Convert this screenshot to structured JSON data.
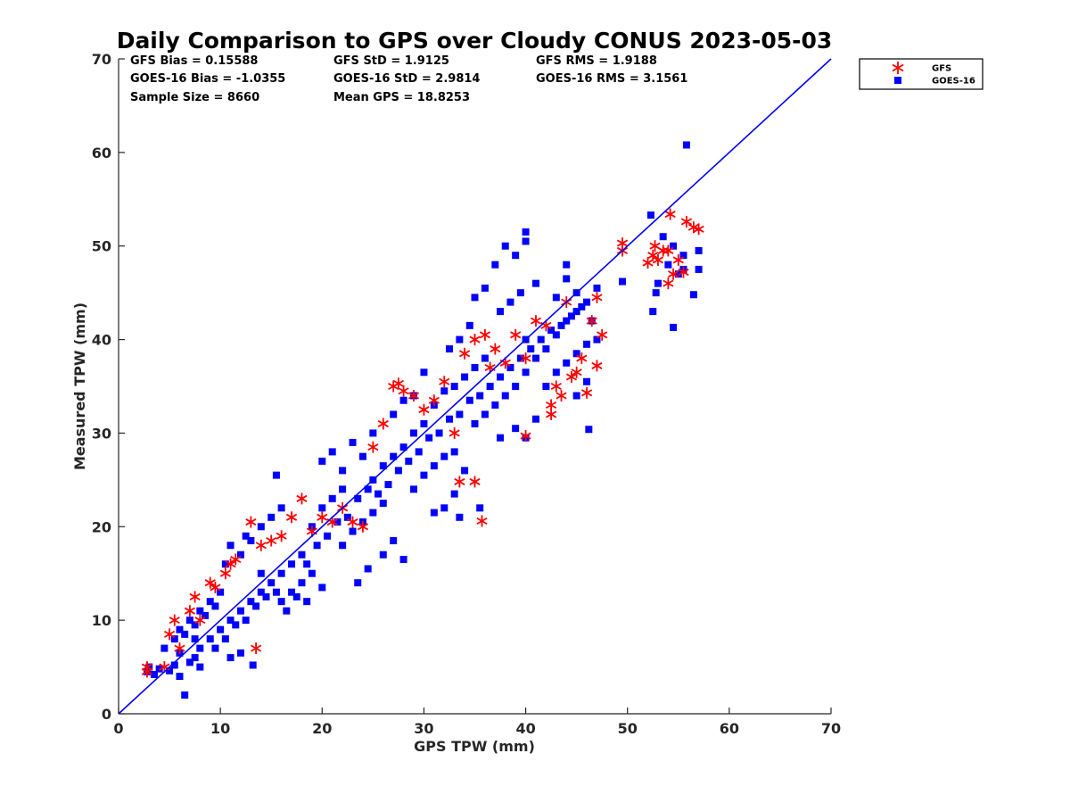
{
  "chart_data": {
    "type": "scatter",
    "title": "Daily Comparison to GPS over Cloudy CONUS 2023-05-03",
    "xlabel": "GPS TPW (mm)",
    "ylabel": "Measured TPW (mm)",
    "xlim": [
      0,
      70
    ],
    "ylim": [
      0,
      70
    ],
    "xticks": [
      "0",
      "10",
      "20",
      "30",
      "40",
      "50",
      "60",
      "70"
    ],
    "yticks": [
      "0",
      "10",
      "20",
      "30",
      "40",
      "50",
      "60",
      "70"
    ],
    "grid": false,
    "legend_position": "outside-top-right",
    "reference_line": {
      "x": [
        0,
        70
      ],
      "y": [
        0,
        70
      ],
      "color": "#0000ff"
    },
    "stats": [
      [
        "GFS Bias = 0.15588",
        "GFS StD = 1.9125",
        "GFS RMS = 1.9188"
      ],
      [
        "GOES-16 Bias = -1.0355",
        "GOES-16 StD = 2.9814",
        "GOES-16 RMS = 3.1561"
      ],
      [
        "Sample Size = 8660",
        "Mean GPS = 18.8253",
        ""
      ]
    ],
    "series": [
      {
        "name": "GOES-16",
        "marker": "square",
        "color": "#0000ff",
        "points": [
          [
            2.8,
            4.5
          ],
          [
            3.5,
            4.2
          ],
          [
            4.0,
            4.8
          ],
          [
            5.0,
            4.6
          ],
          [
            5.5,
            5.2
          ],
          [
            6.0,
            4.0
          ],
          [
            6.5,
            2.0
          ],
          [
            7.0,
            5.5
          ],
          [
            7.5,
            6.0
          ],
          [
            8.0,
            5.0
          ],
          [
            5.5,
            8.0
          ],
          [
            6.0,
            9.0
          ],
          [
            6.5,
            8.5
          ],
          [
            7.0,
            10.0
          ],
          [
            7.5,
            9.5
          ],
          [
            8.0,
            11.0
          ],
          [
            8.5,
            10.5
          ],
          [
            9.0,
            12.0
          ],
          [
            9.5,
            11.5
          ],
          [
            10.0,
            13.0
          ],
          [
            8.0,
            7.0
          ],
          [
            9.0,
            8.0
          ],
          [
            10.0,
            9.0
          ],
          [
            11.0,
            10.0
          ],
          [
            12.0,
            11.0
          ],
          [
            13.0,
            12.0
          ],
          [
            14.0,
            13.0
          ],
          [
            13.2,
            5.2
          ],
          [
            12.0,
            6.5
          ],
          [
            11.0,
            6.0
          ],
          [
            10.5,
            16.0
          ],
          [
            11.0,
            18.0
          ],
          [
            12.0,
            17.0
          ],
          [
            12.5,
            19.0
          ],
          [
            13.0,
            18.5
          ],
          [
            14.0,
            20.0
          ],
          [
            15.0,
            21.0
          ],
          [
            16.0,
            22.0
          ],
          [
            15.5,
            25.5
          ],
          [
            14.0,
            15.0
          ],
          [
            15.0,
            14.0
          ],
          [
            16.0,
            15.0
          ],
          [
            17.0,
            16.0
          ],
          [
            18.0,
            17.0
          ],
          [
            16.0,
            12.0
          ],
          [
            17.0,
            13.0
          ],
          [
            18.0,
            14.0
          ],
          [
            19.0,
            15.0
          ],
          [
            18.5,
            12.0
          ],
          [
            20.0,
            13.5
          ],
          [
            19.0,
            20.0
          ],
          [
            20.0,
            22.0
          ],
          [
            21.0,
            23.0
          ],
          [
            22.0,
            24.0
          ],
          [
            20.0,
            27.0
          ],
          [
            21.0,
            28.0
          ],
          [
            22.0,
            26.0
          ],
          [
            23.0,
            29.0
          ],
          [
            24.0,
            27.5
          ],
          [
            25.0,
            30.0
          ],
          [
            22.0,
            18.0
          ],
          [
            23.0,
            19.5
          ],
          [
            24.0,
            20.5
          ],
          [
            25.0,
            21.5
          ],
          [
            26.0,
            22.5
          ],
          [
            23.5,
            14.0
          ],
          [
            24.5,
            15.5
          ],
          [
            26.0,
            17.0
          ],
          [
            27.0,
            18.5
          ],
          [
            28.0,
            16.5
          ],
          [
            25.0,
            25.0
          ],
          [
            26.0,
            26.5
          ],
          [
            27.0,
            27.5
          ],
          [
            28.0,
            28.5
          ],
          [
            29.0,
            30.0
          ],
          [
            30.0,
            31.0
          ],
          [
            27.0,
            32.0
          ],
          [
            28.0,
            33.5
          ],
          [
            29.0,
            34.0
          ],
          [
            30.0,
            36.5
          ],
          [
            29.0,
            24.0
          ],
          [
            30.0,
            25.5
          ],
          [
            31.0,
            26.5
          ],
          [
            32.0,
            27.5
          ],
          [
            33.0,
            28.0
          ],
          [
            31.0,
            21.5
          ],
          [
            32.0,
            22.0
          ],
          [
            33.0,
            23.5
          ],
          [
            33.5,
            21.0
          ],
          [
            35.5,
            22.0
          ],
          [
            31.0,
            33.0
          ],
          [
            32.0,
            34.5
          ],
          [
            33.0,
            35.0
          ],
          [
            34.0,
            36.0
          ],
          [
            35.0,
            37.0
          ],
          [
            36.0,
            38.0
          ],
          [
            32.5,
            39.0
          ],
          [
            33.5,
            40.0
          ],
          [
            34.5,
            41.5
          ],
          [
            35.0,
            44.5
          ],
          [
            35.0,
            31.0
          ],
          [
            36.0,
            32.0
          ],
          [
            37.0,
            33.0
          ],
          [
            38.0,
            34.0
          ],
          [
            39.0,
            35.0
          ],
          [
            40.0,
            36.5
          ],
          [
            37.5,
            29.5
          ],
          [
            39.0,
            30.5
          ],
          [
            40.0,
            29.5
          ],
          [
            41.0,
            31.5
          ],
          [
            36.0,
            45.5
          ],
          [
            37.0,
            48.0
          ],
          [
            38.0,
            50.0
          ],
          [
            39.0,
            49.0
          ],
          [
            40.0,
            51.5
          ],
          [
            40.0,
            50.5
          ],
          [
            37.5,
            43.0
          ],
          [
            38.5,
            44.0
          ],
          [
            39.5,
            45.0
          ],
          [
            41.0,
            46.0
          ],
          [
            41.0,
            38.0
          ],
          [
            42.0,
            39.0
          ],
          [
            43.0,
            40.5
          ],
          [
            44.0,
            42.0
          ],
          [
            45.0,
            43.0
          ],
          [
            46.0,
            44.0
          ],
          [
            47.0,
            45.5
          ],
          [
            43.0,
            44.5
          ],
          [
            44.0,
            46.5
          ],
          [
            45.0,
            45.0
          ],
          [
            42.0,
            35.0
          ],
          [
            43.0,
            36.5
          ],
          [
            44.0,
            37.5
          ],
          [
            45.0,
            38.5
          ],
          [
            46.0,
            39.5
          ],
          [
            46.2,
            30.4
          ],
          [
            45.0,
            34.0
          ],
          [
            46.0,
            35.5
          ],
          [
            47.0,
            40.0
          ],
          [
            44.0,
            48.0
          ],
          [
            49.5,
            46.2
          ],
          [
            52.3,
            53.3
          ],
          [
            52.5,
            43.0
          ],
          [
            52.8,
            45.0
          ],
          [
            53.0,
            46.0
          ],
          [
            54.0,
            48.0
          ],
          [
            54.5,
            41.3
          ],
          [
            55.0,
            47.0
          ],
          [
            55.5,
            47.5
          ],
          [
            55.8,
            60.8
          ],
          [
            56.5,
            44.8
          ],
          [
            57.0,
            47.5
          ],
          [
            57.0,
            49.5
          ],
          [
            53.5,
            51.0
          ],
          [
            54.5,
            50.0
          ],
          [
            55.5,
            49.0
          ],
          [
            3.0,
            5.0
          ],
          [
            4.5,
            7.0
          ],
          [
            6.0,
            6.5
          ],
          [
            7.5,
            8.0
          ],
          [
            9.5,
            7.0
          ],
          [
            10.5,
            8.0
          ],
          [
            11.5,
            9.5
          ],
          [
            12.5,
            10.0
          ],
          [
            13.5,
            11.5
          ],
          [
            14.5,
            12.5
          ],
          [
            15.5,
            13.0
          ],
          [
            16.5,
            11.0
          ],
          [
            17.5,
            12.5
          ],
          [
            18.5,
            16.0
          ],
          [
            19.5,
            18.0
          ],
          [
            20.5,
            19.0
          ],
          [
            21.5,
            20.5
          ],
          [
            22.5,
            21.0
          ],
          [
            23.5,
            23.0
          ],
          [
            24.5,
            24.0
          ],
          [
            25.5,
            23.5
          ],
          [
            26.5,
            24.5
          ],
          [
            27.5,
            26.0
          ],
          [
            28.5,
            27.0
          ],
          [
            29.5,
            28.0
          ],
          [
            30.5,
            29.5
          ],
          [
            31.5,
            30.0
          ],
          [
            32.5,
            31.5
          ],
          [
            33.5,
            32.0
          ],
          [
            34.5,
            33.5
          ],
          [
            35.5,
            34.0
          ],
          [
            36.5,
            35.0
          ],
          [
            37.5,
            36.0
          ],
          [
            38.5,
            37.0
          ],
          [
            39.5,
            38.0
          ],
          [
            40.5,
            39.0
          ],
          [
            41.5,
            40.0
          ],
          [
            42.5,
            41.0
          ],
          [
            43.5,
            41.5
          ],
          [
            44.5,
            42.5
          ],
          [
            45.5,
            43.5
          ],
          [
            46.5,
            42.0
          ],
          [
            40.0,
            40.0
          ],
          [
            34.0,
            26.0
          ]
        ]
      },
      {
        "name": "GFS",
        "marker": "asterisk",
        "color": "#ff0000",
        "points": [
          [
            2.8,
            5.0
          ],
          [
            2.8,
            4.5
          ],
          [
            4.5,
            5.0
          ],
          [
            5.0,
            8.5
          ],
          [
            5.5,
            10.0
          ],
          [
            6.0,
            7.0
          ],
          [
            7.0,
            11.0
          ],
          [
            7.5,
            12.5
          ],
          [
            8.0,
            10.0
          ],
          [
            9.0,
            14.0
          ],
          [
            9.5,
            13.5
          ],
          [
            10.5,
            15.0
          ],
          [
            11.0,
            16.0
          ],
          [
            11.5,
            16.5
          ],
          [
            13.0,
            20.5
          ],
          [
            13.5,
            7.0
          ],
          [
            14.0,
            18.0
          ],
          [
            15.0,
            18.5
          ],
          [
            16.0,
            19.0
          ],
          [
            17.0,
            21.0
          ],
          [
            18.0,
            23.0
          ],
          [
            19.0,
            19.5
          ],
          [
            20.0,
            21.0
          ],
          [
            21.0,
            20.5
          ],
          [
            22.0,
            22.0
          ],
          [
            23.0,
            20.5
          ],
          [
            24.0,
            20.0
          ],
          [
            25.0,
            28.5
          ],
          [
            26.0,
            31.0
          ],
          [
            27.0,
            35.0
          ],
          [
            27.5,
            35.3
          ],
          [
            28.0,
            34.5
          ],
          [
            29.0,
            34.0
          ],
          [
            30.0,
            32.5
          ],
          [
            31.0,
            33.5
          ],
          [
            32.0,
            35.5
          ],
          [
            33.0,
            30.0
          ],
          [
            33.5,
            24.8
          ],
          [
            35.0,
            24.8
          ],
          [
            35.7,
            20.6
          ],
          [
            34.0,
            38.5
          ],
          [
            35.0,
            40.0
          ],
          [
            36.0,
            40.5
          ],
          [
            37.0,
            39.0
          ],
          [
            38.0,
            37.5
          ],
          [
            39.0,
            40.5
          ],
          [
            40.0,
            38.0
          ],
          [
            40.0,
            29.7
          ],
          [
            41.0,
            42.0
          ],
          [
            42.0,
            41.5
          ],
          [
            42.5,
            33.0
          ],
          [
            42.5,
            32.0
          ],
          [
            43.0,
            35.0
          ],
          [
            43.5,
            34.0
          ],
          [
            44.0,
            44.0
          ],
          [
            44.5,
            36.0
          ],
          [
            45.0,
            36.5
          ],
          [
            45.5,
            38.0
          ],
          [
            46.0,
            34.3
          ],
          [
            46.5,
            42.0
          ],
          [
            47.0,
            37.2
          ],
          [
            47.0,
            44.5
          ],
          [
            47.5,
            40.5
          ],
          [
            49.5,
            50.3
          ],
          [
            49.5,
            49.5
          ],
          [
            52.0,
            48.2
          ],
          [
            52.5,
            49.0
          ],
          [
            52.7,
            50.0
          ],
          [
            53.0,
            48.5
          ],
          [
            53.5,
            49.5
          ],
          [
            54.2,
            53.4
          ],
          [
            54.0,
            46.0
          ],
          [
            54.5,
            47.0
          ],
          [
            55.0,
            48.5
          ],
          [
            55.5,
            47.2
          ],
          [
            55.8,
            52.6
          ],
          [
            56.5,
            52.0
          ],
          [
            57.0,
            51.8
          ],
          [
            54.0,
            49.5
          ],
          [
            36.5,
            37.0
          ]
        ]
      }
    ]
  }
}
